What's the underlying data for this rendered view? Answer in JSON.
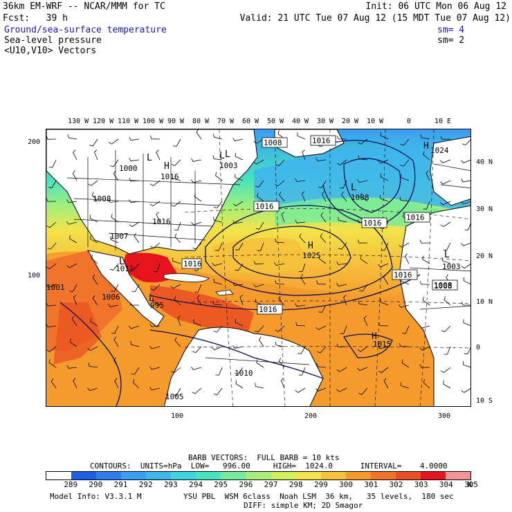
{
  "header": {
    "model_line": "36km EM-WRF -- NCAR/MMM for TC",
    "init_line": "Init: 06 UTC Mon 06 Aug 12",
    "fcst_line": "Fcst:   39 h",
    "valid_line": "Valid: 21 UTC Tue 07 Aug 12 (15 MDT Tue 07 Aug 12)",
    "field1_label": "Ground/sea-surface temperature",
    "field1_sm": "sm= 4",
    "field2_label": "Sea-level pressure",
    "field2_sm": "sm= 2",
    "field3_label": "<U10,V10> Vectors"
  },
  "lon_labels": [
    "130 W",
    "120 W",
    "110 W",
    "100 W",
    "90 W",
    "80 W",
    "70 W",
    "60 W",
    "50 W",
    "40 W",
    "30 W",
    "20 W",
    "10 W",
    "0",
    "10 E"
  ],
  "lat_labels": [
    "40 N",
    "30 N",
    "20 N",
    "10 N",
    "0",
    "10 S"
  ],
  "grid_left_ticks": [
    "200",
    "100"
  ],
  "grid_bottom_ticks": [
    "100",
    "200",
    "300"
  ],
  "pressure_labels": {
    "boxed": [
      "1008",
      "1016",
      "1016",
      "1016",
      "1016",
      "1016",
      "1016",
      "1016",
      "1016",
      "1008"
    ],
    "plain": [
      "1024",
      "1008",
      "1000",
      "1016",
      "1008",
      "1003",
      "1016",
      "1007",
      "1012",
      "1001",
      "1006",
      "995",
      "1016",
      "1025",
      "1015",
      "1010",
      "1005",
      "1003",
      "1008"
    ],
    "centers": [
      "L",
      "H",
      "L",
      "L",
      "H",
      "L",
      "L",
      "H",
      "H",
      "L",
      "L"
    ]
  },
  "footer": {
    "barb_line": "BARB VECTORS:  FULL BARB = 10 kts",
    "contours_line": "CONTOURS:  UNITS=hPa  LOW=   996.00     HIGH=  1024.0      INTERVAL=    4.0000",
    "colorbar_labels": [
      "289",
      "290",
      "291",
      "292",
      "293",
      "294",
      "295",
      "296",
      "297",
      "298",
      "299",
      "300",
      "301",
      "302",
      "303",
      "304",
      "305"
    ],
    "colorbar_unit": "K",
    "model_info": "Model Info: V3.3.1 M",
    "physics_line": "YSU PBL  WSM 6class  Noah LSM  36 km,   35 levels,  180 sec",
    "diff_line": "DIFF: simple KM; 2D Smagor"
  },
  "colorbar_colors": [
    "#ffffff",
    "#1e5fe6",
    "#2e7ef0",
    "#3a9ef5",
    "#40b8ee",
    "#3fd4e0",
    "#48e3c0",
    "#77eb9a",
    "#a6ef7a",
    "#d2ef5c",
    "#f3e34a",
    "#f6c13c",
    "#f59a2e",
    "#f0752a",
    "#ea4e22",
    "#e6141c",
    "#f59494"
  ]
}
